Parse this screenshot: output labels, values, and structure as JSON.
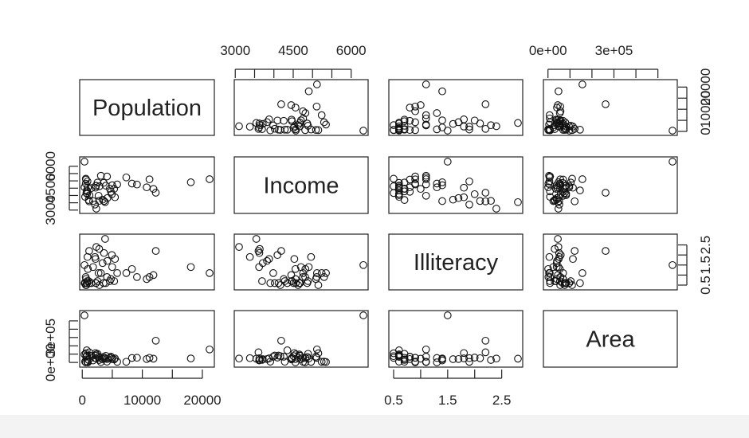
{
  "chart_data": {
    "type": "scatter-matrix",
    "variables": [
      "Population",
      "Income",
      "Illiteracy",
      "Area"
    ],
    "axis_ticks": {
      "Population": {
        "ticks": [
          0,
          5000,
          10000,
          15000,
          20000
        ],
        "labels": {
          "0": "0",
          "10000": "10000",
          "20000": "20000"
        }
      },
      "Income": {
        "ticks": [
          3000,
          3500,
          4000,
          4500,
          5000,
          5500,
          6000
        ],
        "labels": {
          "3000": "3000",
          "4500": "4500",
          "6000": "6000"
        }
      },
      "Illiteracy": {
        "ticks": [
          0.5,
          1.0,
          1.5,
          2.0,
          2.5
        ],
        "labels": {
          "0.5": "0.5",
          "1.5": "1.5",
          "2.5": "2.5"
        }
      },
      "Area": {
        "ticks": [
          0,
          100000,
          200000,
          300000,
          400000,
          500000
        ],
        "labels": {
          "0": "0e+00",
          "300000": "3e+05"
        }
      }
    },
    "ranges": {
      "Population": [
        365,
        21198
      ],
      "Income": [
        3098,
        6315
      ],
      "Illiteracy": [
        0.5,
        2.8
      ],
      "Area": [
        1049,
        566432
      ]
    },
    "points": [
      [
        3615,
        3624,
        2.1,
        50708
      ],
      [
        365,
        6315,
        1.5,
        566432
      ],
      [
        2212,
        4530,
        1.8,
        113417
      ],
      [
        2110,
        3378,
        1.9,
        51945
      ],
      [
        21198,
        5114,
        1.1,
        156361
      ],
      [
        2541,
        4884,
        0.7,
        103766
      ],
      [
        3100,
        5348,
        1.1,
        4862
      ],
      [
        579,
        4809,
        0.9,
        1982
      ],
      [
        8277,
        4815,
        1.3,
        54090
      ],
      [
        4931,
        4091,
        2.0,
        58073
      ],
      [
        868,
        4963,
        1.9,
        6425
      ],
      [
        813,
        4119,
        0.6,
        82677
      ],
      [
        11197,
        5107,
        0.9,
        55748
      ],
      [
        5313,
        4458,
        0.7,
        36097
      ],
      [
        2861,
        4628,
        0.5,
        55941
      ],
      [
        2280,
        4669,
        0.6,
        81787
      ],
      [
        3387,
        3712,
        1.6,
        39650
      ],
      [
        3806,
        3545,
        2.8,
        44930
      ],
      [
        1058,
        3694,
        0.7,
        30920
      ],
      [
        4122,
        5299,
        0.9,
        9891
      ],
      [
        5814,
        4755,
        1.1,
        7826
      ],
      [
        9111,
        4751,
        0.9,
        56817
      ],
      [
        3921,
        4675,
        0.6,
        79289
      ],
      [
        2341,
        3098,
        2.4,
        47296
      ],
      [
        4767,
        4254,
        0.8,
        68995
      ],
      [
        746,
        4347,
        0.6,
        145587
      ],
      [
        1544,
        4508,
        0.6,
        76483
      ],
      [
        590,
        5149,
        0.5,
        109889
      ],
      [
        812,
        4281,
        0.7,
        9027
      ],
      [
        7333,
        5237,
        1.1,
        7521
      ],
      [
        1144,
        3601,
        2.2,
        121412
      ],
      [
        18076,
        4903,
        1.4,
        47831
      ],
      [
        5441,
        3875,
        1.8,
        48798
      ],
      [
        637,
        5087,
        0.8,
        69273
      ],
      [
        10735,
        4561,
        0.8,
        40975
      ],
      [
        2715,
        3983,
        1.1,
        68782
      ],
      [
        2284,
        4660,
        0.6,
        96184
      ],
      [
        11860,
        4449,
        1.0,
        44966
      ],
      [
        931,
        4558,
        1.3,
        1049
      ],
      [
        2816,
        3635,
        2.3,
        30225
      ],
      [
        681,
        4167,
        0.5,
        75955
      ],
      [
        4173,
        3821,
        1.7,
        41328
      ],
      [
        12237,
        4188,
        2.2,
        262134
      ],
      [
        1203,
        4022,
        0.6,
        82096
      ],
      [
        472,
        3907,
        0.6,
        9267
      ],
      [
        4981,
        4701,
        1.4,
        39780
      ],
      [
        3559,
        4864,
        0.6,
        66570
      ],
      [
        1799,
        3617,
        1.4,
        24070
      ],
      [
        4589,
        4468,
        0.7,
        54464
      ],
      [
        376,
        4566,
        0.6,
        97203
      ]
    ]
  }
}
